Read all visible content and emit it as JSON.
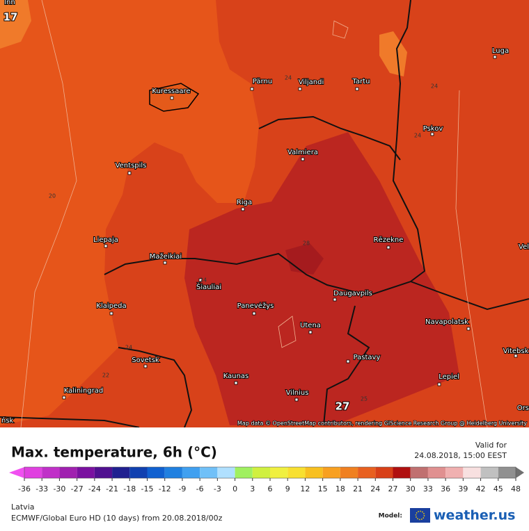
{
  "map": {
    "partial_labels": [
      "lnn",
      "Vel",
      "Ors",
      "ńsk"
    ],
    "cities": [
      "Pärnu",
      "Viljandi",
      "Tartu",
      "Luga",
      "Kuressaare",
      "Pskov",
      "Valmiera",
      "Ventspils",
      "Riga",
      "Liepaja",
      "Rēzekne",
      "Mažeikiai",
      "Šiauliai",
      "Klaipeda",
      "Panevėžys",
      "Daugavpils",
      "Utena",
      "Navapolatsk",
      "Vitebsk",
      "Sovetsk",
      "Pastavy",
      "Kaunas",
      "Lepiel",
      "Kaliningrad",
      "Vilnius"
    ],
    "isotherm_labels": [
      24,
      24,
      24,
      20,
      28,
      24,
      24,
      22,
      25
    ],
    "extremes": [
      17,
      27
    ],
    "attribution": "Map data © OpenStreetMap contributors, rendering GIScience Research Group @ Heidelberg University"
  },
  "footer": {
    "title": "Max. temperature, 6h (°C)",
    "valid_label": "Valid for",
    "valid_time": "24.08.2018, 15:00 EEST",
    "region": "Latvia",
    "model_run": "ECMWF/Global Euro HD (10 days) from 20.08.2018/00z",
    "model_label": "Model:",
    "brand": "weather.us"
  },
  "colorbar": {
    "ticks": [
      -36,
      -33,
      -30,
      -27,
      -24,
      -21,
      -18,
      -15,
      -12,
      -9,
      -6,
      -3,
      0,
      3,
      6,
      9,
      12,
      15,
      18,
      21,
      24,
      27,
      30,
      33,
      36,
      39,
      42,
      45,
      48
    ],
    "colors": [
      "#e040e0",
      "#c030c8",
      "#a020b0",
      "#7a10a0",
      "#501090",
      "#202090",
      "#1040b0",
      "#1060d0",
      "#2080e0",
      "#40a0f0",
      "#70c0f8",
      "#b0e0ff",
      "#a0f060",
      "#d0f040",
      "#f0f040",
      "#f8e030",
      "#f8c020",
      "#f8a020",
      "#f08020",
      "#e86020",
      "#d84018",
      "#b01010",
      "#c07070",
      "#e09090",
      "#f0b0b0",
      "#f8e0e0",
      "#c0c0c0",
      "#909090"
    ],
    "under_color": "#f050f0",
    "over_color": "#707070"
  }
}
